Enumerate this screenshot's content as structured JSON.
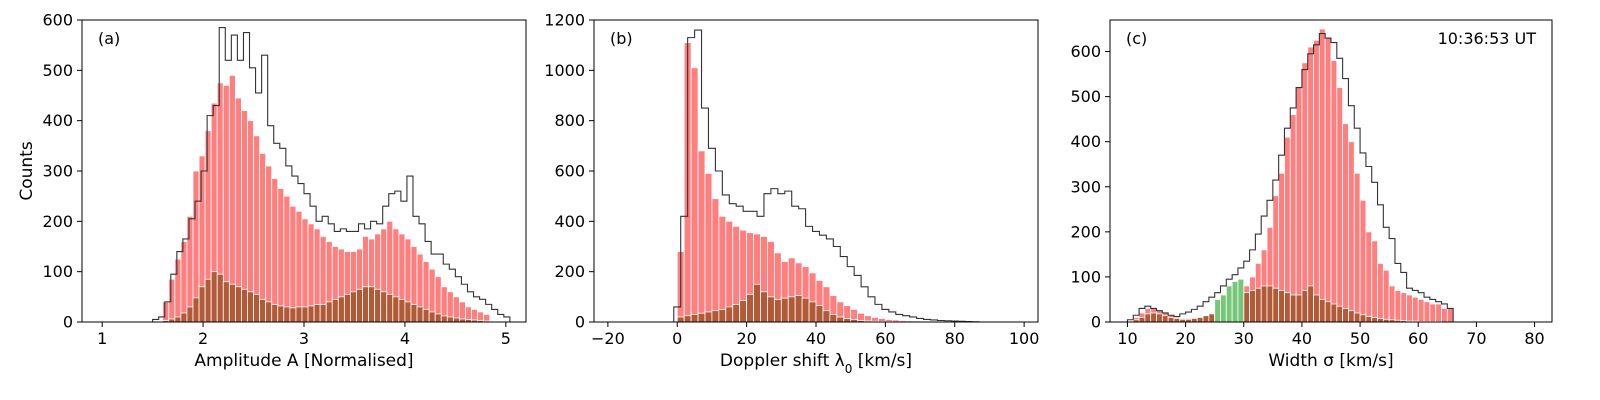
{
  "chart_data": [
    {
      "type": "bar",
      "panel_label": "(a)",
      "xlabel": "Amplitude A [Normalised]",
      "xlabel_sub": "",
      "xlabel_tail": "",
      "ylabel": "Counts",
      "annotation": "",
      "xlim": [
        0.8,
        5.2
      ],
      "ylim": [
        0,
        600
      ],
      "xticks": [
        1,
        2,
        3,
        4,
        5
      ],
      "yticks": [
        0,
        100,
        200,
        300,
        400,
        500,
        600
      ],
      "bin_start": 1.6,
      "bin_width": 0.06,
      "step_start": 1.5,
      "colors": {
        "primary": "#ff7f7f",
        "secondary": "#b05a37",
        "tertiary": "#77c77a",
        "step": "#333333"
      },
      "series": [
        {
          "values": [
            40,
            85,
            125,
            160,
            210,
            300,
            330,
            380,
            435,
            475,
            470,
            490,
            445,
            420,
            400,
            370,
            335,
            310,
            285,
            265,
            250,
            230,
            220,
            205,
            195,
            185,
            170,
            160,
            150,
            145,
            140,
            140,
            145,
            170,
            165,
            175,
            185,
            200,
            185,
            175,
            165,
            150,
            135,
            120,
            105,
            90,
            70,
            60,
            50,
            40,
            30,
            25,
            20,
            15
          ]
        },
        {
          "values": [
            3,
            6,
            10,
            18,
            30,
            48,
            70,
            85,
            100,
            95,
            80,
            75,
            70,
            65,
            60,
            55,
            45,
            40,
            35,
            32,
            30,
            28,
            30,
            30,
            32,
            35,
            35,
            40,
            45,
            50,
            55,
            60,
            65,
            70,
            70,
            65,
            60,
            55,
            50,
            45,
            40,
            35,
            30,
            25,
            20,
            16,
            12,
            10,
            8,
            6,
            5,
            4,
            3,
            2
          ]
        },
        {
          "values": []
        }
      ],
      "step_values": [
        5,
        10,
        40,
        95,
        140,
        165,
        205,
        240,
        300,
        410,
        430,
        585,
        520,
        570,
        520,
        575,
        505,
        455,
        530,
        390,
        355,
        345,
        310,
        290,
        275,
        255,
        230,
        200,
        210,
        195,
        180,
        185,
        180,
        180,
        195,
        185,
        200,
        195,
        230,
        255,
        260,
        240,
        290,
        210,
        195,
        160,
        135,
        135,
        115,
        105,
        90,
        75,
        60,
        50,
        45,
        35,
        25,
        15,
        10
      ]
    },
    {
      "type": "bar",
      "panel_label": "(b)",
      "xlabel": "Doppler shift λ",
      "xlabel_sub": "0",
      "xlabel_tail": " [km/s]",
      "ylabel": "",
      "annotation": "",
      "xlim": [
        -24,
        104
      ],
      "ylim": [
        0,
        1200
      ],
      "xticks": [
        -20,
        0,
        20,
        40,
        60,
        80,
        100
      ],
      "yticks": [
        0,
        200,
        400,
        600,
        800,
        1000,
        1200
      ],
      "bin_start": 0,
      "bin_width": 2,
      "step_start": -1,
      "colors": {
        "primary": "#ff7f7f",
        "secondary": "#b05a37",
        "tertiary": "#77c77a",
        "step": "#333333"
      },
      "series": [
        {
          "values": [
            280,
            1110,
            1010,
            680,
            590,
            490,
            420,
            400,
            380,
            365,
            355,
            350,
            340,
            320,
            275,
            240,
            255,
            235,
            220,
            195,
            165,
            140,
            105,
            80,
            65,
            50,
            35,
            25,
            18,
            14,
            10,
            8,
            6,
            5,
            4,
            3,
            3,
            2,
            2,
            1
          ]
        },
        {
          "values": [
            20,
            25,
            30,
            35,
            40,
            45,
            50,
            60,
            70,
            85,
            110,
            150,
            120,
            100,
            90,
            95,
            100,
            105,
            95,
            80,
            65,
            45,
            30,
            20,
            14,
            10,
            6,
            4,
            3,
            2,
            2,
            1,
            1,
            1,
            0,
            0,
            0,
            0,
            0,
            0
          ]
        },
        {
          "values": []
        }
      ],
      "step_values": [
        60,
        420,
        1130,
        1160,
        850,
        690,
        600,
        505,
        470,
        460,
        440,
        440,
        420,
        510,
        530,
        510,
        520,
        460,
        450,
        380,
        360,
        345,
        330,
        300,
        260,
        220,
        185,
        140,
        100,
        70,
        50,
        40,
        30,
        25,
        20,
        14,
        10,
        8,
        6,
        5,
        4,
        3,
        2,
        1
      ]
    },
    {
      "type": "bar",
      "panel_label": "(c)",
      "xlabel": "Width σ [km/s]",
      "xlabel_sub": "",
      "xlabel_tail": "",
      "ylabel": "",
      "annotation": "10:36:53 UT",
      "xlim": [
        7,
        83
      ],
      "ylim": [
        0,
        670
      ],
      "xticks": [
        10,
        20,
        30,
        40,
        50,
        60,
        70,
        80
      ],
      "yticks": [
        0,
        100,
        200,
        300,
        400,
        500,
        600
      ],
      "bin_start": 11,
      "bin_width": 1,
      "step_start": 10,
      "colors": {
        "primary": "#ff7f7f",
        "secondary": "#b05a37",
        "tertiary": "#77c77a",
        "step": "#333333"
      },
      "series": [
        {
          "values": [
            10,
            20,
            30,
            30,
            25,
            20,
            15,
            10,
            8,
            8,
            10,
            12,
            15,
            20,
            28,
            38,
            50,
            60,
            70,
            80,
            100,
            130,
            160,
            210,
            280,
            330,
            410,
            460,
            520,
            575,
            610,
            625,
            650,
            630,
            580,
            520,
            440,
            400,
            330,
            270,
            200,
            180,
            130,
            115,
            80,
            70,
            65,
            60,
            55,
            50,
            45,
            40,
            40,
            30,
            30
          ]
        },
        {
          "values": [
            5,
            10,
            18,
            20,
            18,
            14,
            10,
            8,
            6,
            6,
            8,
            10,
            14,
            18,
            25,
            32,
            40,
            50,
            60,
            65,
            70,
            75,
            80,
            80,
            75,
            70,
            65,
            60,
            60,
            70,
            80,
            60,
            50,
            45,
            40,
            35,
            30,
            25,
            20,
            16,
            12,
            10,
            8,
            6,
            5,
            4,
            3,
            2,
            2,
            1,
            1,
            1,
            1,
            0,
            0
          ]
        },
        {
          "values": [
            0,
            0,
            0,
            0,
            0,
            0,
            0,
            0,
            0,
            0,
            0,
            0,
            0,
            0,
            50,
            60,
            80,
            90,
            95,
            0,
            0,
            0,
            0,
            0,
            0,
            0,
            0,
            0,
            0,
            0,
            0,
            0,
            0,
            0,
            0,
            0,
            0,
            0,
            0,
            0,
            0,
            0,
            0,
            0,
            0,
            0,
            0,
            0,
            0,
            0,
            0,
            0,
            0,
            0,
            0
          ]
        }
      ],
      "step_values": [
        5,
        15,
        30,
        35,
        30,
        25,
        20,
        15,
        12,
        18,
        22,
        28,
        35,
        45,
        55,
        65,
        80,
        95,
        105,
        120,
        135,
        160,
        195,
        235,
        270,
        315,
        370,
        430,
        475,
        520,
        560,
        595,
        615,
        640,
        630,
        620,
        585,
        540,
        480,
        430,
        375,
        345,
        310,
        260,
        210,
        185,
        130,
        110,
        75,
        70,
        65,
        55,
        50,
        45,
        40,
        30
      ]
    }
  ]
}
